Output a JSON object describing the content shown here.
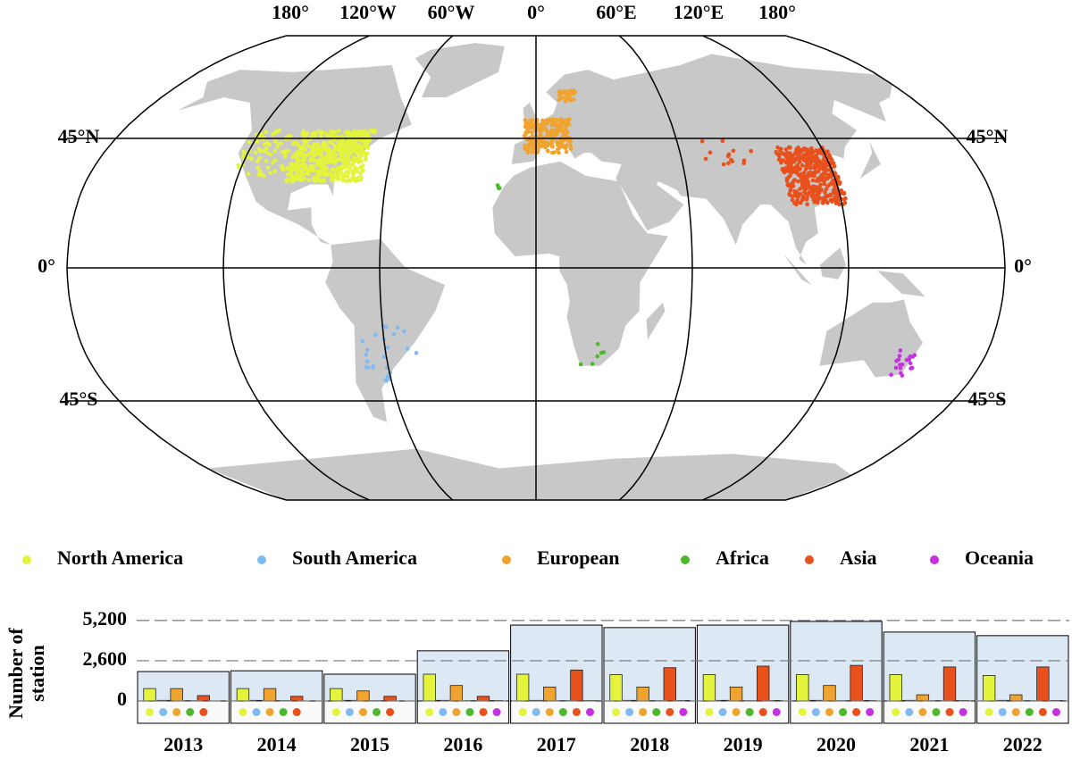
{
  "map": {
    "lon_labels": [
      "180°",
      "120°W",
      "60°W",
      "0°",
      "60°E",
      "120°E",
      "180°"
    ],
    "lat_labels": [
      "45°N",
      "0°",
      "45°S"
    ]
  },
  "chart_data": {
    "type": "bar",
    "y_label": "Number of station",
    "categories": [
      "2013",
      "2014",
      "2015",
      "2016",
      "2017",
      "2018",
      "2019",
      "2020",
      "2021",
      "2022"
    ],
    "values": [
      1900,
      1950,
      1730,
      3240,
      4900,
      4740,
      4900,
      5140,
      4450,
      4220
    ],
    "color": "#dce9f5",
    "series": [
      {
        "name": "North America",
        "color": "#e4f43c",
        "values": [
          800,
          800,
          800,
          1730,
          1730,
          1700,
          1700,
          1700,
          1700,
          1650
        ]
      },
      {
        "name": "South America",
        "color": "#7fbaf2",
        "values": [
          40,
          40,
          40,
          40,
          40,
          40,
          40,
          40,
          40,
          40
        ]
      },
      {
        "name": "European",
        "color": "#f0a32e",
        "values": [
          800,
          800,
          650,
          1000,
          900,
          900,
          900,
          1000,
          400,
          400
        ]
      },
      {
        "name": "Africa",
        "color": "#4cb82c",
        "values": [
          20,
          20,
          20,
          20,
          20,
          20,
          20,
          20,
          20,
          20
        ]
      },
      {
        "name": "Asia",
        "color": "#e8501c",
        "values": [
          350,
          300,
          300,
          300,
          2000,
          2150,
          2250,
          2300,
          2200,
          2200
        ]
      },
      {
        "name": "Oceania",
        "color": "#c530e0",
        "values": [
          null,
          null,
          null,
          30,
          30,
          30,
          30,
          30,
          30,
          30
        ]
      }
    ],
    "ylim": [
      0,
      6000
    ],
    "yticks": [
      0,
      {
        "value": 2600,
        "label": "2,600"
      },
      {
        "value": 5200,
        "label": "5,200"
      }
    ],
    "grid": true
  }
}
